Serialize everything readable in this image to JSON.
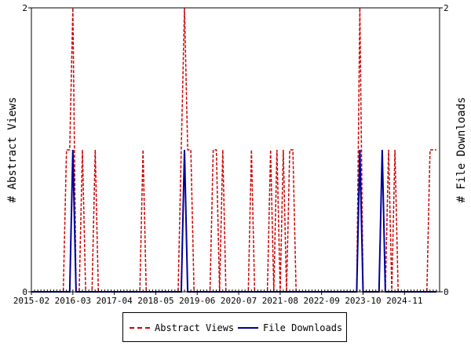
{
  "chart_data": {
    "type": "line",
    "title": "",
    "xlabel": "",
    "ylabel_left": "# Abstract Views",
    "ylabel_right": "# File Downloads",
    "y_left_ticks": [
      "0",
      "2"
    ],
    "y_right_ticks": [
      "0",
      "2"
    ],
    "ylim": [
      0,
      2
    ],
    "x_tick_labels": [
      "2015-02",
      "2016-03",
      "2017-04",
      "2018-05",
      "2019-06",
      "2020-07",
      "2021-08",
      "2022-09",
      "2023-10",
      "2024-11"
    ],
    "x_start": "2015-02",
    "x_end": "2025-09",
    "grid": false,
    "legend_position": "bottom",
    "series": [
      {
        "name": "Abstract Views",
        "color": "#cc0000",
        "style": "dashed",
        "points": [
          [
            "2015-02",
            0
          ],
          [
            "2015-12",
            0
          ],
          [
            "2016-01",
            1
          ],
          [
            "2016-02",
            1
          ],
          [
            "2016-03",
            2
          ],
          [
            "2016-04",
            0
          ],
          [
            "2016-05",
            0
          ],
          [
            "2016-06",
            1
          ],
          [
            "2016-07",
            0
          ],
          [
            "2016-08",
            0
          ],
          [
            "2016-09",
            0
          ],
          [
            "2016-10",
            1
          ],
          [
            "2016-11",
            0
          ],
          [
            "2017-12",
            0
          ],
          [
            "2018-01",
            1
          ],
          [
            "2018-02",
            0
          ],
          [
            "2018-12",
            0
          ],
          [
            "2019-01",
            1
          ],
          [
            "2019-02",
            2
          ],
          [
            "2019-03",
            1
          ],
          [
            "2019-04",
            1
          ],
          [
            "2019-05",
            0
          ],
          [
            "2019-10",
            0
          ],
          [
            "2019-11",
            1
          ],
          [
            "2019-12",
            1
          ],
          [
            "2020-01",
            0
          ],
          [
            "2020-02",
            1
          ],
          [
            "2020-03",
            0
          ],
          [
            "2020-10",
            0
          ],
          [
            "2020-11",
            1
          ],
          [
            "2020-12",
            0
          ],
          [
            "2021-04",
            0
          ],
          [
            "2021-05",
            1
          ],
          [
            "2021-06",
            0
          ],
          [
            "2021-07",
            1
          ],
          [
            "2021-08",
            0
          ],
          [
            "2021-09",
            1
          ],
          [
            "2021-10",
            0
          ],
          [
            "2021-11",
            1
          ],
          [
            "2021-12",
            1
          ],
          [
            "2022-01",
            0
          ],
          [
            "2023-08",
            0
          ],
          [
            "2023-09",
            2
          ],
          [
            "2023-10",
            0
          ],
          [
            "2024-05",
            0
          ],
          [
            "2024-06",
            1
          ],
          [
            "2024-07",
            0
          ],
          [
            "2024-08",
            1
          ],
          [
            "2024-09",
            0
          ],
          [
            "2025-06",
            0
          ],
          [
            "2025-07",
            1
          ],
          [
            "2025-08",
            1
          ]
        ]
      },
      {
        "name": "File Downloads",
        "color": "#000099",
        "style": "solid",
        "points": [
          [
            "2015-02",
            0
          ],
          [
            "2016-02",
            0
          ],
          [
            "2016-03",
            1
          ],
          [
            "2016-04",
            0
          ],
          [
            "2019-01",
            0
          ],
          [
            "2019-02",
            1
          ],
          [
            "2019-03",
            0
          ],
          [
            "2023-08",
            0
          ],
          [
            "2023-09",
            1
          ],
          [
            "2023-10",
            0
          ],
          [
            "2024-03",
            0
          ],
          [
            "2024-04",
            1
          ],
          [
            "2024-05",
            0
          ],
          [
            "2025-08",
            0
          ]
        ]
      }
    ]
  }
}
